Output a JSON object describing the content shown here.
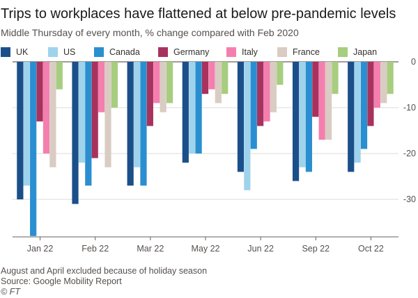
{
  "title": "Trips to workplaces have flattened at below pre-pandemic levels",
  "subtitle": "Middle Thursday of every month, % change compared with Feb 2020",
  "note": "August and April excluded because of holiday season",
  "source": "Source: Google Mobility Report",
  "credit": "© FT",
  "chart_data": {
    "type": "bar",
    "title": "Trips to workplaces have flattened at below pre-pandemic levels",
    "subtitle": "Middle Thursday of every month, % change compared with Feb 2020",
    "categories": [
      "Jan 22",
      "Feb 22",
      "Mar 22",
      "May 22",
      "Jun 22",
      "Sep 22",
      "Oct 22"
    ],
    "series": [
      {
        "name": "UK",
        "color": "#1b4f8a",
        "values": [
          -30,
          -31,
          -27,
          -22,
          -24,
          -26,
          -24
        ]
      },
      {
        "name": "US",
        "color": "#9fd3ec",
        "values": [
          -27,
          -22,
          -23,
          -20,
          -28,
          -23,
          -22
        ]
      },
      {
        "name": "Canada",
        "color": "#2a8fd0",
        "values": [
          -38,
          -27,
          -27,
          -20,
          -19,
          -24,
          -19
        ]
      },
      {
        "name": "Germany",
        "color": "#a8325e",
        "values": [
          -13,
          -21,
          -14,
          -7,
          -14,
          -12,
          -14
        ]
      },
      {
        "name": "Italy",
        "color": "#f47fae",
        "values": [
          -20,
          -11,
          -9,
          -6,
          -13,
          -17,
          -10
        ]
      },
      {
        "name": "France",
        "color": "#d9ccc3",
        "values": [
          -23,
          -23,
          -11,
          -9,
          -11,
          -17,
          -9
        ]
      },
      {
        "name": "Japan",
        "color": "#a7cd7e",
        "values": [
          -6,
          -10,
          -9,
          -7,
          -5,
          -7,
          -7
        ]
      }
    ],
    "yticks": [
      0,
      -10,
      -20,
      -30
    ],
    "ylim": [
      -38,
      0
    ],
    "y_axis_position": "right",
    "grid": true,
    "legend_position": "top"
  }
}
